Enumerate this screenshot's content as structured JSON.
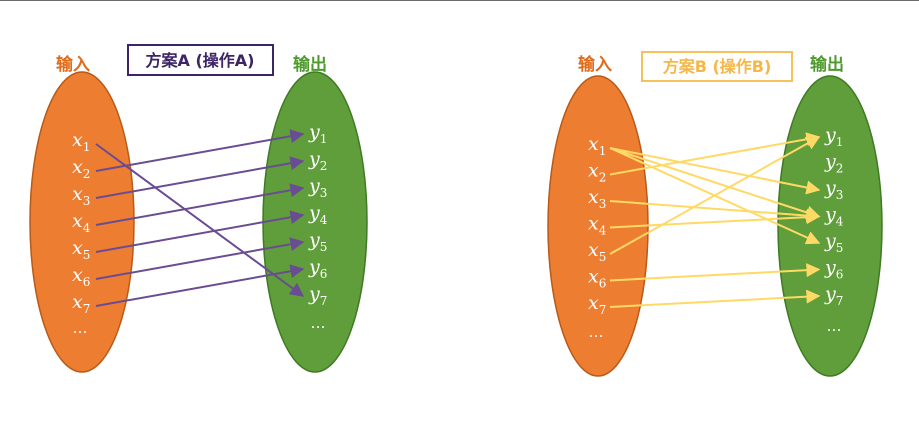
{
  "colors": {
    "input_fill": "#ED7D31",
    "input_stroke": "#B85A18",
    "output_fill": "#5F9E3A",
    "output_stroke": "#3F7A24",
    "arrow_a": "#6A4C93",
    "arrow_b": "#FFD966",
    "heading_input": "#E06C1B",
    "heading_output": "#4F9A2E",
    "box_a": "#3C2465",
    "box_b": "#F5C15A"
  },
  "left": {
    "input_label": "输入",
    "output_label": "输出",
    "scheme_label": "方案A (操作A)",
    "inputs": [
      {
        "base": "x",
        "sub": "1"
      },
      {
        "base": "x",
        "sub": "2"
      },
      {
        "base": "x",
        "sub": "3"
      },
      {
        "base": "x",
        "sub": "4"
      },
      {
        "base": "x",
        "sub": "5"
      },
      {
        "base": "x",
        "sub": "6"
      },
      {
        "base": "x",
        "sub": "7"
      }
    ],
    "outputs": [
      {
        "base": "y",
        "sub": "1"
      },
      {
        "base": "y",
        "sub": "2"
      },
      {
        "base": "y",
        "sub": "3"
      },
      {
        "base": "y",
        "sub": "4"
      },
      {
        "base": "y",
        "sub": "5"
      },
      {
        "base": "y",
        "sub": "6"
      },
      {
        "base": "y",
        "sub": "7"
      }
    ],
    "ellipsis": "…",
    "mapping": [
      [
        1,
        7
      ],
      [
        2,
        1
      ],
      [
        3,
        2
      ],
      [
        4,
        3
      ],
      [
        5,
        4
      ],
      [
        6,
        5
      ],
      [
        7,
        6
      ]
    ]
  },
  "right": {
    "input_label": "输入",
    "output_label": "输出",
    "scheme_label": "方案B  (操作B)",
    "inputs": [
      {
        "base": "x",
        "sub": "1"
      },
      {
        "base": "x",
        "sub": "2"
      },
      {
        "base": "x",
        "sub": "3"
      },
      {
        "base": "x",
        "sub": "4"
      },
      {
        "base": "x",
        "sub": "5"
      },
      {
        "base": "x",
        "sub": "6"
      },
      {
        "base": "x",
        "sub": "7"
      }
    ],
    "outputs": [
      {
        "base": "y",
        "sub": "1"
      },
      {
        "base": "y",
        "sub": "2"
      },
      {
        "base": "y",
        "sub": "3"
      },
      {
        "base": "y",
        "sub": "4"
      },
      {
        "base": "y",
        "sub": "5"
      },
      {
        "base": "y",
        "sub": "6"
      },
      {
        "base": "y",
        "sub": "7"
      }
    ],
    "ellipsis": "…",
    "mapping": [
      [
        1,
        3
      ],
      [
        1,
        4
      ],
      [
        1,
        5
      ],
      [
        2,
        1
      ],
      [
        3,
        4
      ],
      [
        4,
        4
      ],
      [
        5,
        1
      ],
      [
        6,
        6
      ],
      [
        7,
        7
      ]
    ]
  }
}
